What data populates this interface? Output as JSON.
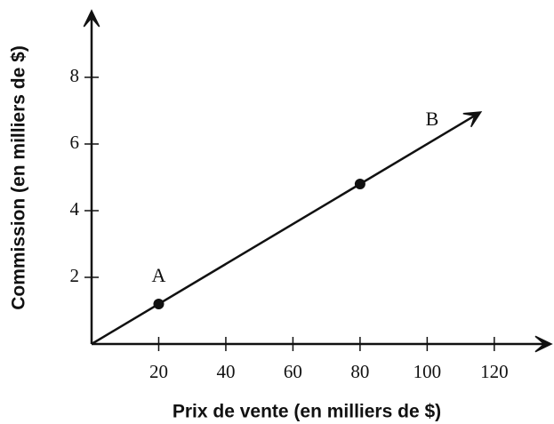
{
  "chart_data": {
    "type": "line",
    "xlabel": "Prix de vente (en milliers de $)",
    "ylabel": "Commission (en milliers de $)",
    "xlim": [
      0,
      137
    ],
    "ylim": [
      0,
      10
    ],
    "xticks": [
      20,
      40,
      60,
      80,
      100,
      120
    ],
    "yticks": [
      2,
      4,
      6,
      8
    ],
    "line": {
      "x": [
        0,
        116
      ],
      "values": [
        0,
        6.96
      ],
      "color": "#111111"
    },
    "points": {
      "x": [
        20,
        80
      ],
      "values": [
        1.2,
        4.8
      ],
      "color": "#111111"
    },
    "annotations": [
      "A",
      "B"
    ]
  }
}
